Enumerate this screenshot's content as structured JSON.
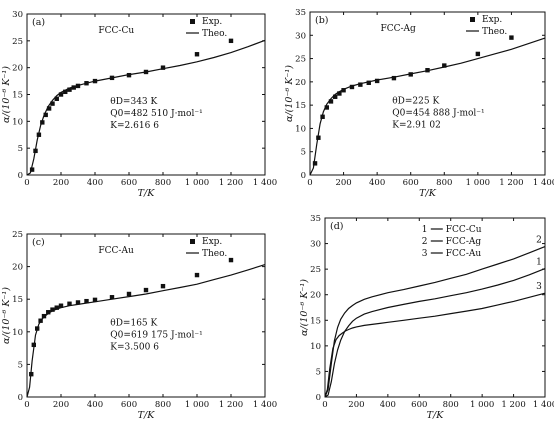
{
  "chart_data": [
    {
      "panel": "(a)",
      "type": "line",
      "material": "FCC-Cu",
      "legend": {
        "exp": "Exp.",
        "theo": "Theo."
      },
      "xlabel": "T/K",
      "ylabel": "α/(10⁻⁶ K⁻¹)",
      "xlim": [
        0,
        1400
      ],
      "ylim": [
        0,
        30
      ],
      "xticks": [
        0,
        200,
        400,
        600,
        800,
        1000,
        1200,
        1400
      ],
      "xtick_labels": [
        "0",
        "200",
        "400",
        "600",
        "800",
        "1 000",
        "1 200",
        "1 400"
      ],
      "yticks": [
        0,
        5,
        10,
        15,
        20,
        25,
        30
      ],
      "params": [
        "θD=343 K",
        "Q0=482 510 J·mol⁻¹",
        "K=2.616 6"
      ],
      "exp": {
        "x": [
          30,
          50,
          70,
          90,
          110,
          130,
          150,
          175,
          200,
          225,
          250,
          275,
          300,
          350,
          400,
          500,
          600,
          700,
          800,
          1000,
          1200
        ],
        "y": [
          1.0,
          4.5,
          7.5,
          9.8,
          11.2,
          12.4,
          13.3,
          14.2,
          15.0,
          15.5,
          15.9,
          16.3,
          16.6,
          17.1,
          17.5,
          18.1,
          18.6,
          19.2,
          20.0,
          22.5,
          25.0
        ]
      },
      "theo": {
        "x": [
          0,
          20,
          40,
          60,
          80,
          100,
          125,
          150,
          175,
          200,
          250,
          300,
          400,
          500,
          600,
          700,
          800,
          900,
          1000,
          1100,
          1200,
          1300,
          1400
        ],
        "y": [
          0,
          0.4,
          3.0,
          6.5,
          9.2,
          11.1,
          12.8,
          13.9,
          14.8,
          15.4,
          16.2,
          16.7,
          17.5,
          18.1,
          18.7,
          19.2,
          19.8,
          20.4,
          21.1,
          21.9,
          22.8,
          23.9,
          25.1
        ]
      }
    },
    {
      "panel": "(b)",
      "type": "line",
      "material": "FCC-Ag",
      "legend": {
        "exp": "Exp.",
        "theo": "Theo."
      },
      "xlabel": "T/K",
      "ylabel": "α/(10⁻⁶ K⁻¹)",
      "xlim": [
        0,
        1400
      ],
      "ylim": [
        0,
        35
      ],
      "xticks": [
        0,
        200,
        400,
        600,
        800,
        1000,
        1200,
        1400
      ],
      "xtick_labels": [
        "0",
        "200",
        "400",
        "600",
        "800",
        "1 000",
        "1 200",
        "1 400"
      ],
      "yticks": [
        0,
        5,
        10,
        15,
        20,
        25,
        30,
        35
      ],
      "params": [
        "θD=225 K",
        "Q0=454 888 J·mol⁻¹",
        "K=2.91 02"
      ],
      "exp": {
        "x": [
          30,
          50,
          75,
          100,
          125,
          150,
          175,
          200,
          250,
          300,
          350,
          400,
          500,
          600,
          700,
          800,
          1000,
          1200
        ],
        "y": [
          2.5,
          8.0,
          12.5,
          14.5,
          15.8,
          16.8,
          17.5,
          18.2,
          18.9,
          19.4,
          19.8,
          20.2,
          20.8,
          21.6,
          22.5,
          23.5,
          26.0,
          29.5
        ]
      },
      "theo": {
        "x": [
          0,
          20,
          40,
          60,
          80,
          100,
          125,
          150,
          175,
          200,
          250,
          300,
          400,
          500,
          600,
          700,
          800,
          900,
          1000,
          1100,
          1200,
          1300,
          1400
        ],
        "y": [
          0,
          1.5,
          6.5,
          11.0,
          13.6,
          15.2,
          16.4,
          17.3,
          17.9,
          18.4,
          19.1,
          19.6,
          20.4,
          21.0,
          21.7,
          22.4,
          23.2,
          24.0,
          25.0,
          26.0,
          27.0,
          28.2,
          29.4
        ]
      }
    },
    {
      "panel": "(c)",
      "type": "line",
      "material": "FCC-Au",
      "legend": {
        "exp": "Exp.",
        "theo": "Theo."
      },
      "xlabel": "T/K",
      "ylabel": "α/(10⁻⁶ K⁻¹)",
      "xlim": [
        0,
        1400
      ],
      "ylim": [
        0,
        25
      ],
      "xticks": [
        0,
        200,
        400,
        600,
        800,
        1000,
        1200,
        1400
      ],
      "xtick_labels": [
        "0",
        "200",
        "400",
        "600",
        "800",
        "1 000",
        "1 200",
        "1 400"
      ],
      "yticks": [
        0,
        5,
        10,
        15,
        20,
        25
      ],
      "params": [
        "θD=165 K",
        "Q0=619 175 J·mol⁻¹",
        "K=3.500 6"
      ],
      "exp": {
        "x": [
          25,
          40,
          60,
          80,
          100,
          125,
          150,
          175,
          200,
          250,
          300,
          350,
          400,
          500,
          600,
          700,
          800,
          1000,
          1200
        ],
        "y": [
          3.5,
          8.0,
          10.5,
          11.7,
          12.4,
          13.0,
          13.4,
          13.7,
          14.0,
          14.3,
          14.5,
          14.7,
          14.9,
          15.3,
          15.8,
          16.4,
          17.0,
          18.7,
          21.0
        ]
      },
      "theo": {
        "x": [
          0,
          15,
          30,
          50,
          70,
          90,
          110,
          130,
          150,
          175,
          200,
          250,
          300,
          400,
          500,
          600,
          700,
          800,
          900,
          1000,
          1100,
          1200,
          1300,
          1400
        ],
        "y": [
          0,
          1.5,
          5.5,
          9.5,
          11.2,
          12.0,
          12.5,
          12.9,
          13.2,
          13.5,
          13.7,
          14.0,
          14.2,
          14.6,
          15.0,
          15.4,
          15.8,
          16.3,
          16.8,
          17.3,
          18.0,
          18.7,
          19.5,
          20.3
        ]
      }
    },
    {
      "panel": "(d)",
      "type": "line",
      "xlabel": "T/K",
      "ylabel": "α/(10⁻⁶ K⁻¹)",
      "xlim": [
        0,
        1400
      ],
      "ylim": [
        0,
        35
      ],
      "xticks": [
        0,
        200,
        400,
        600,
        800,
        1000,
        1200,
        1400
      ],
      "xtick_labels": [
        "0",
        "200",
        "400",
        "600",
        "800",
        "1 000",
        "1 200",
        "1 400"
      ],
      "yticks": [
        0,
        5,
        10,
        15,
        20,
        25,
        30,
        35
      ],
      "legend_items": [
        {
          "num": "1",
          "name": "FCC-Cu"
        },
        {
          "num": "2",
          "name": "FCC-Ag"
        },
        {
          "num": "3",
          "name": "FCC-Au"
        }
      ],
      "series": [
        {
          "label": "1",
          "x": [
            0,
            20,
            40,
            60,
            80,
            100,
            125,
            150,
            175,
            200,
            250,
            300,
            400,
            500,
            600,
            700,
            800,
            900,
            1000,
            1100,
            1200,
            1300,
            1400
          ],
          "y": [
            0,
            0.4,
            3.0,
            6.5,
            9.2,
            11.1,
            12.8,
            13.9,
            14.8,
            15.4,
            16.2,
            16.7,
            17.5,
            18.1,
            18.7,
            19.2,
            19.8,
            20.4,
            21.1,
            21.9,
            22.8,
            23.9,
            25.1
          ]
        },
        {
          "label": "2",
          "x": [
            0,
            20,
            40,
            60,
            80,
            100,
            125,
            150,
            175,
            200,
            250,
            300,
            400,
            500,
            600,
            700,
            800,
            900,
            1000,
            1100,
            1200,
            1300,
            1400
          ],
          "y": [
            0,
            1.5,
            6.5,
            11.0,
            13.6,
            15.2,
            16.4,
            17.3,
            17.9,
            18.4,
            19.1,
            19.6,
            20.4,
            21.0,
            21.7,
            22.4,
            23.2,
            24.0,
            25.0,
            26.0,
            27.0,
            28.2,
            29.4
          ]
        },
        {
          "label": "3",
          "x": [
            0,
            15,
            30,
            50,
            70,
            90,
            110,
            130,
            150,
            175,
            200,
            250,
            300,
            400,
            500,
            600,
            700,
            800,
            900,
            1000,
            1100,
            1200,
            1300,
            1400
          ],
          "y": [
            0,
            1.5,
            5.5,
            9.5,
            11.2,
            12.0,
            12.5,
            12.9,
            13.2,
            13.5,
            13.7,
            14.0,
            14.2,
            14.6,
            15.0,
            15.4,
            15.8,
            16.3,
            16.8,
            17.3,
            18.0,
            18.7,
            19.5,
            20.3
          ]
        }
      ]
    }
  ]
}
